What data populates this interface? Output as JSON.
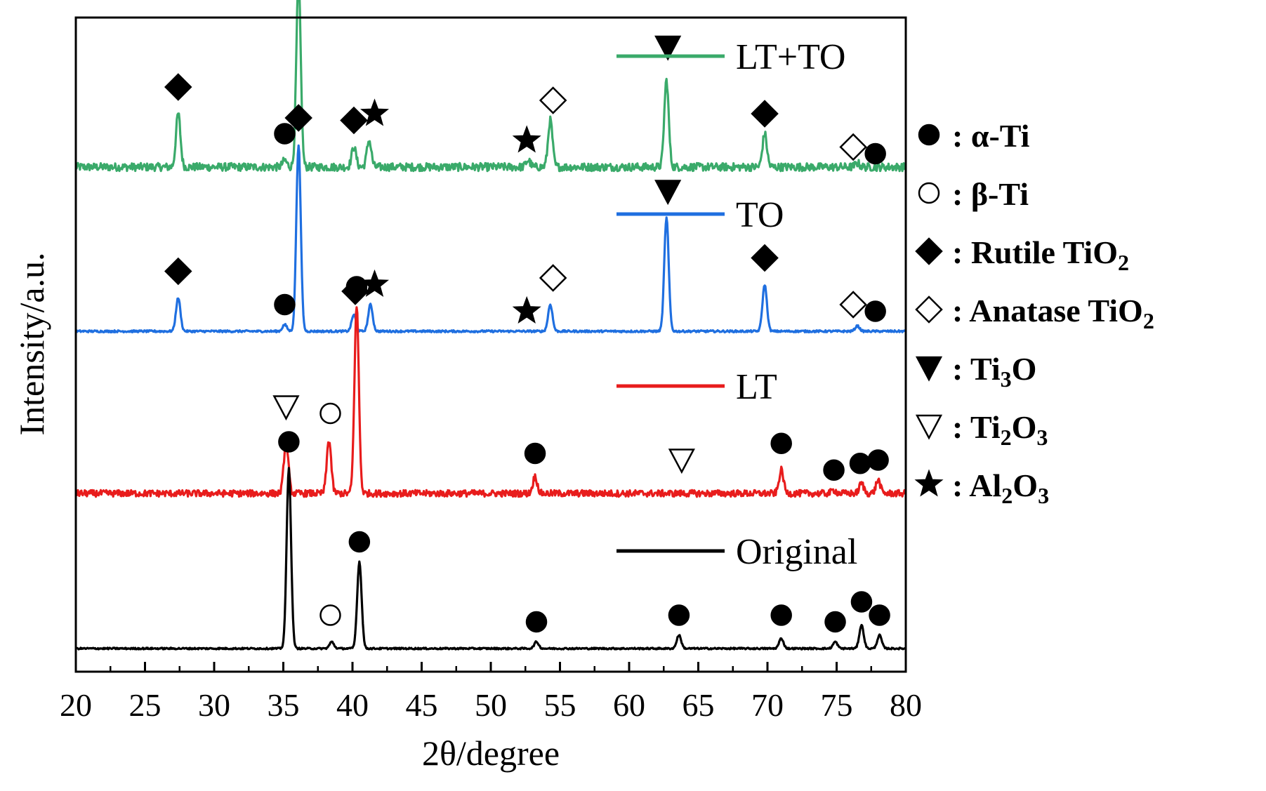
{
  "chart_data": {
    "type": "line",
    "title": "",
    "xlabel": "2θ/degree",
    "ylabel": "Intensity/a.u.",
    "xlim": [
      20,
      80
    ],
    "xticks": [
      20,
      25,
      30,
      35,
      40,
      45,
      50,
      55,
      60,
      65,
      70,
      75,
      80
    ],
    "tick_labels": [
      "20",
      "25",
      "30",
      "35",
      "40",
      "45",
      "50",
      "55",
      "60",
      "65",
      "70",
      "75",
      "80"
    ],
    "y_ticks_shown": false,
    "colors": {
      "LT+TO": "#3aaa6a",
      "TO": "#1f6fe0",
      "LT": "#e81c1c",
      "Original": "#000000"
    },
    "series": [
      {
        "name": "LT+TO",
        "color": "#3aaa6a",
        "baseline": 0.0,
        "noise": 0.6,
        "peaks": [
          [
            27.4,
            8
          ],
          [
            35.1,
            1
          ],
          [
            36.1,
            28
          ],
          [
            40.1,
            3
          ],
          [
            41.2,
            4
          ],
          [
            52.7,
            1
          ],
          [
            54.3,
            7
          ],
          [
            62.7,
            13
          ],
          [
            69.8,
            5
          ],
          [
            76.5,
            0.6
          ]
        ],
        "markers": [
          {
            "symbol": "diamond-filled",
            "x": 27.4,
            "h": 12
          },
          {
            "symbol": "circle-filled",
            "x": 35.1,
            "h": 5
          },
          {
            "symbol": "diamond-filled",
            "x": 36.1,
            "h": 31
          },
          {
            "symbol": "diamond-filled",
            "x": 40.1,
            "h": 7
          },
          {
            "symbol": "star",
            "x": 41.6,
            "h": 8
          },
          {
            "symbol": "star",
            "x": 52.6,
            "h": 4
          },
          {
            "symbol": "diamond-open",
            "x": 54.5,
            "h": 10
          },
          {
            "symbol": "triangle-down-filled",
            "x": 62.8,
            "h": 18
          },
          {
            "symbol": "diamond-filled",
            "x": 69.8,
            "h": 8
          },
          {
            "symbol": "diamond-open",
            "x": 76.2,
            "h": 3
          },
          {
            "symbol": "circle-filled",
            "x": 77.8,
            "h": 2
          }
        ]
      },
      {
        "name": "TO",
        "color": "#1f6fe0",
        "baseline": 0.0,
        "noise": 0.15,
        "peaks": [
          [
            27.4,
            5
          ],
          [
            35.1,
            1
          ],
          [
            36.1,
            28
          ],
          [
            40.1,
            2.5
          ],
          [
            41.3,
            4
          ],
          [
            54.3,
            4
          ],
          [
            62.7,
            17
          ],
          [
            69.8,
            7
          ],
          [
            76.5,
            0.8
          ]
        ],
        "markers": [
          {
            "symbol": "diamond-filled",
            "x": 27.4,
            "h": 9
          },
          {
            "symbol": "circle-filled",
            "x": 35.1,
            "h": 4
          },
          {
            "symbol": "diamond-filled",
            "x": 36.1,
            "h": 32
          },
          {
            "symbol": "diamond-filled",
            "x": 40.2,
            "h": 6
          },
          {
            "symbol": "star",
            "x": 41.6,
            "h": 7
          },
          {
            "symbol": "star",
            "x": 52.6,
            "h": 3
          },
          {
            "symbol": "diamond-open",
            "x": 54.5,
            "h": 8
          },
          {
            "symbol": "triangle-down-filled",
            "x": 62.8,
            "h": 21
          },
          {
            "symbol": "diamond-filled",
            "x": 69.8,
            "h": 11
          },
          {
            "symbol": "diamond-open",
            "x": 76.2,
            "h": 4
          },
          {
            "symbol": "circle-filled",
            "x": 77.8,
            "h": 3
          }
        ]
      },
      {
        "name": "LT",
        "color": "#e81c1c",
        "baseline": 0.0,
        "noise": 0.5,
        "peaks": [
          [
            35.2,
            8
          ],
          [
            38.3,
            8
          ],
          [
            40.3,
            28
          ],
          [
            53.2,
            2.5
          ],
          [
            71.0,
            3.5
          ],
          [
            74.8,
            0.5
          ],
          [
            76.8,
            1.5
          ],
          [
            78.0,
            2
          ]
        ],
        "markers": [
          {
            "symbol": "triangle-down-open",
            "x": 35.2,
            "h": 13
          },
          {
            "symbol": "circle-open",
            "x": 38.4,
            "h": 12
          },
          {
            "symbol": "circle-filled",
            "x": 40.3,
            "h": 31
          },
          {
            "symbol": "circle-filled",
            "x": 53.2,
            "h": 6
          },
          {
            "symbol": "triangle-down-open",
            "x": 63.8,
            "h": 5
          },
          {
            "symbol": "circle-filled",
            "x": 71.0,
            "h": 7.5
          },
          {
            "symbol": "circle-filled",
            "x": 74.8,
            "h": 3.5
          },
          {
            "symbol": "circle-filled",
            "x": 76.7,
            "h": 4.5
          },
          {
            "symbol": "circle-filled",
            "x": 78.0,
            "h": 5
          }
        ]
      },
      {
        "name": "Original",
        "color": "#000000",
        "baseline": 0.0,
        "noise": 0.12,
        "peaks": [
          [
            35.4,
            27
          ],
          [
            38.5,
            1
          ],
          [
            40.5,
            13
          ],
          [
            53.3,
            1
          ],
          [
            63.6,
            2
          ],
          [
            71.0,
            1.5
          ],
          [
            74.9,
            1
          ],
          [
            76.8,
            3.5
          ],
          [
            78.1,
            2
          ]
        ],
        "markers": [
          {
            "symbol": "circle-filled",
            "x": 35.4,
            "h": 31
          },
          {
            "symbol": "circle-open",
            "x": 38.4,
            "h": 5
          },
          {
            "symbol": "circle-filled",
            "x": 40.5,
            "h": 16
          },
          {
            "symbol": "circle-filled",
            "x": 53.3,
            "h": 4
          },
          {
            "symbol": "circle-filled",
            "x": 63.6,
            "h": 5
          },
          {
            "symbol": "circle-filled",
            "x": 71.0,
            "h": 5
          },
          {
            "symbol": "circle-filled",
            "x": 74.9,
            "h": 4
          },
          {
            "symbol": "circle-filled",
            "x": 76.8,
            "h": 7
          },
          {
            "symbol": "circle-filled",
            "x": 78.1,
            "h": 5
          }
        ]
      }
    ],
    "legend": [
      {
        "symbol": "circle-filled",
        "parts": [
          [
            ": α-Ti",
            false
          ]
        ]
      },
      {
        "symbol": "circle-open",
        "parts": [
          [
            ": β-Ti",
            false
          ]
        ]
      },
      {
        "symbol": "diamond-filled",
        "parts": [
          [
            ": Rutile TiO",
            false
          ],
          [
            "2",
            true
          ]
        ]
      },
      {
        "symbol": "diamond-open",
        "parts": [
          [
            ": Anatase TiO",
            false
          ],
          [
            "2",
            true
          ]
        ]
      },
      {
        "symbol": "triangle-down-filled",
        "parts": [
          [
            ": Ti",
            false
          ],
          [
            "3",
            true
          ],
          [
            "O",
            false
          ]
        ]
      },
      {
        "symbol": "triangle-down-open",
        "parts": [
          [
            ": Ti",
            false
          ],
          [
            "2",
            true
          ],
          [
            "O",
            false
          ],
          [
            "3",
            true
          ]
        ]
      },
      {
        "symbol": "star",
        "parts": [
          [
            ": Al",
            false
          ],
          [
            "2",
            true
          ],
          [
            "O",
            false
          ],
          [
            "3",
            true
          ]
        ]
      }
    ],
    "legend_placement": "right"
  }
}
